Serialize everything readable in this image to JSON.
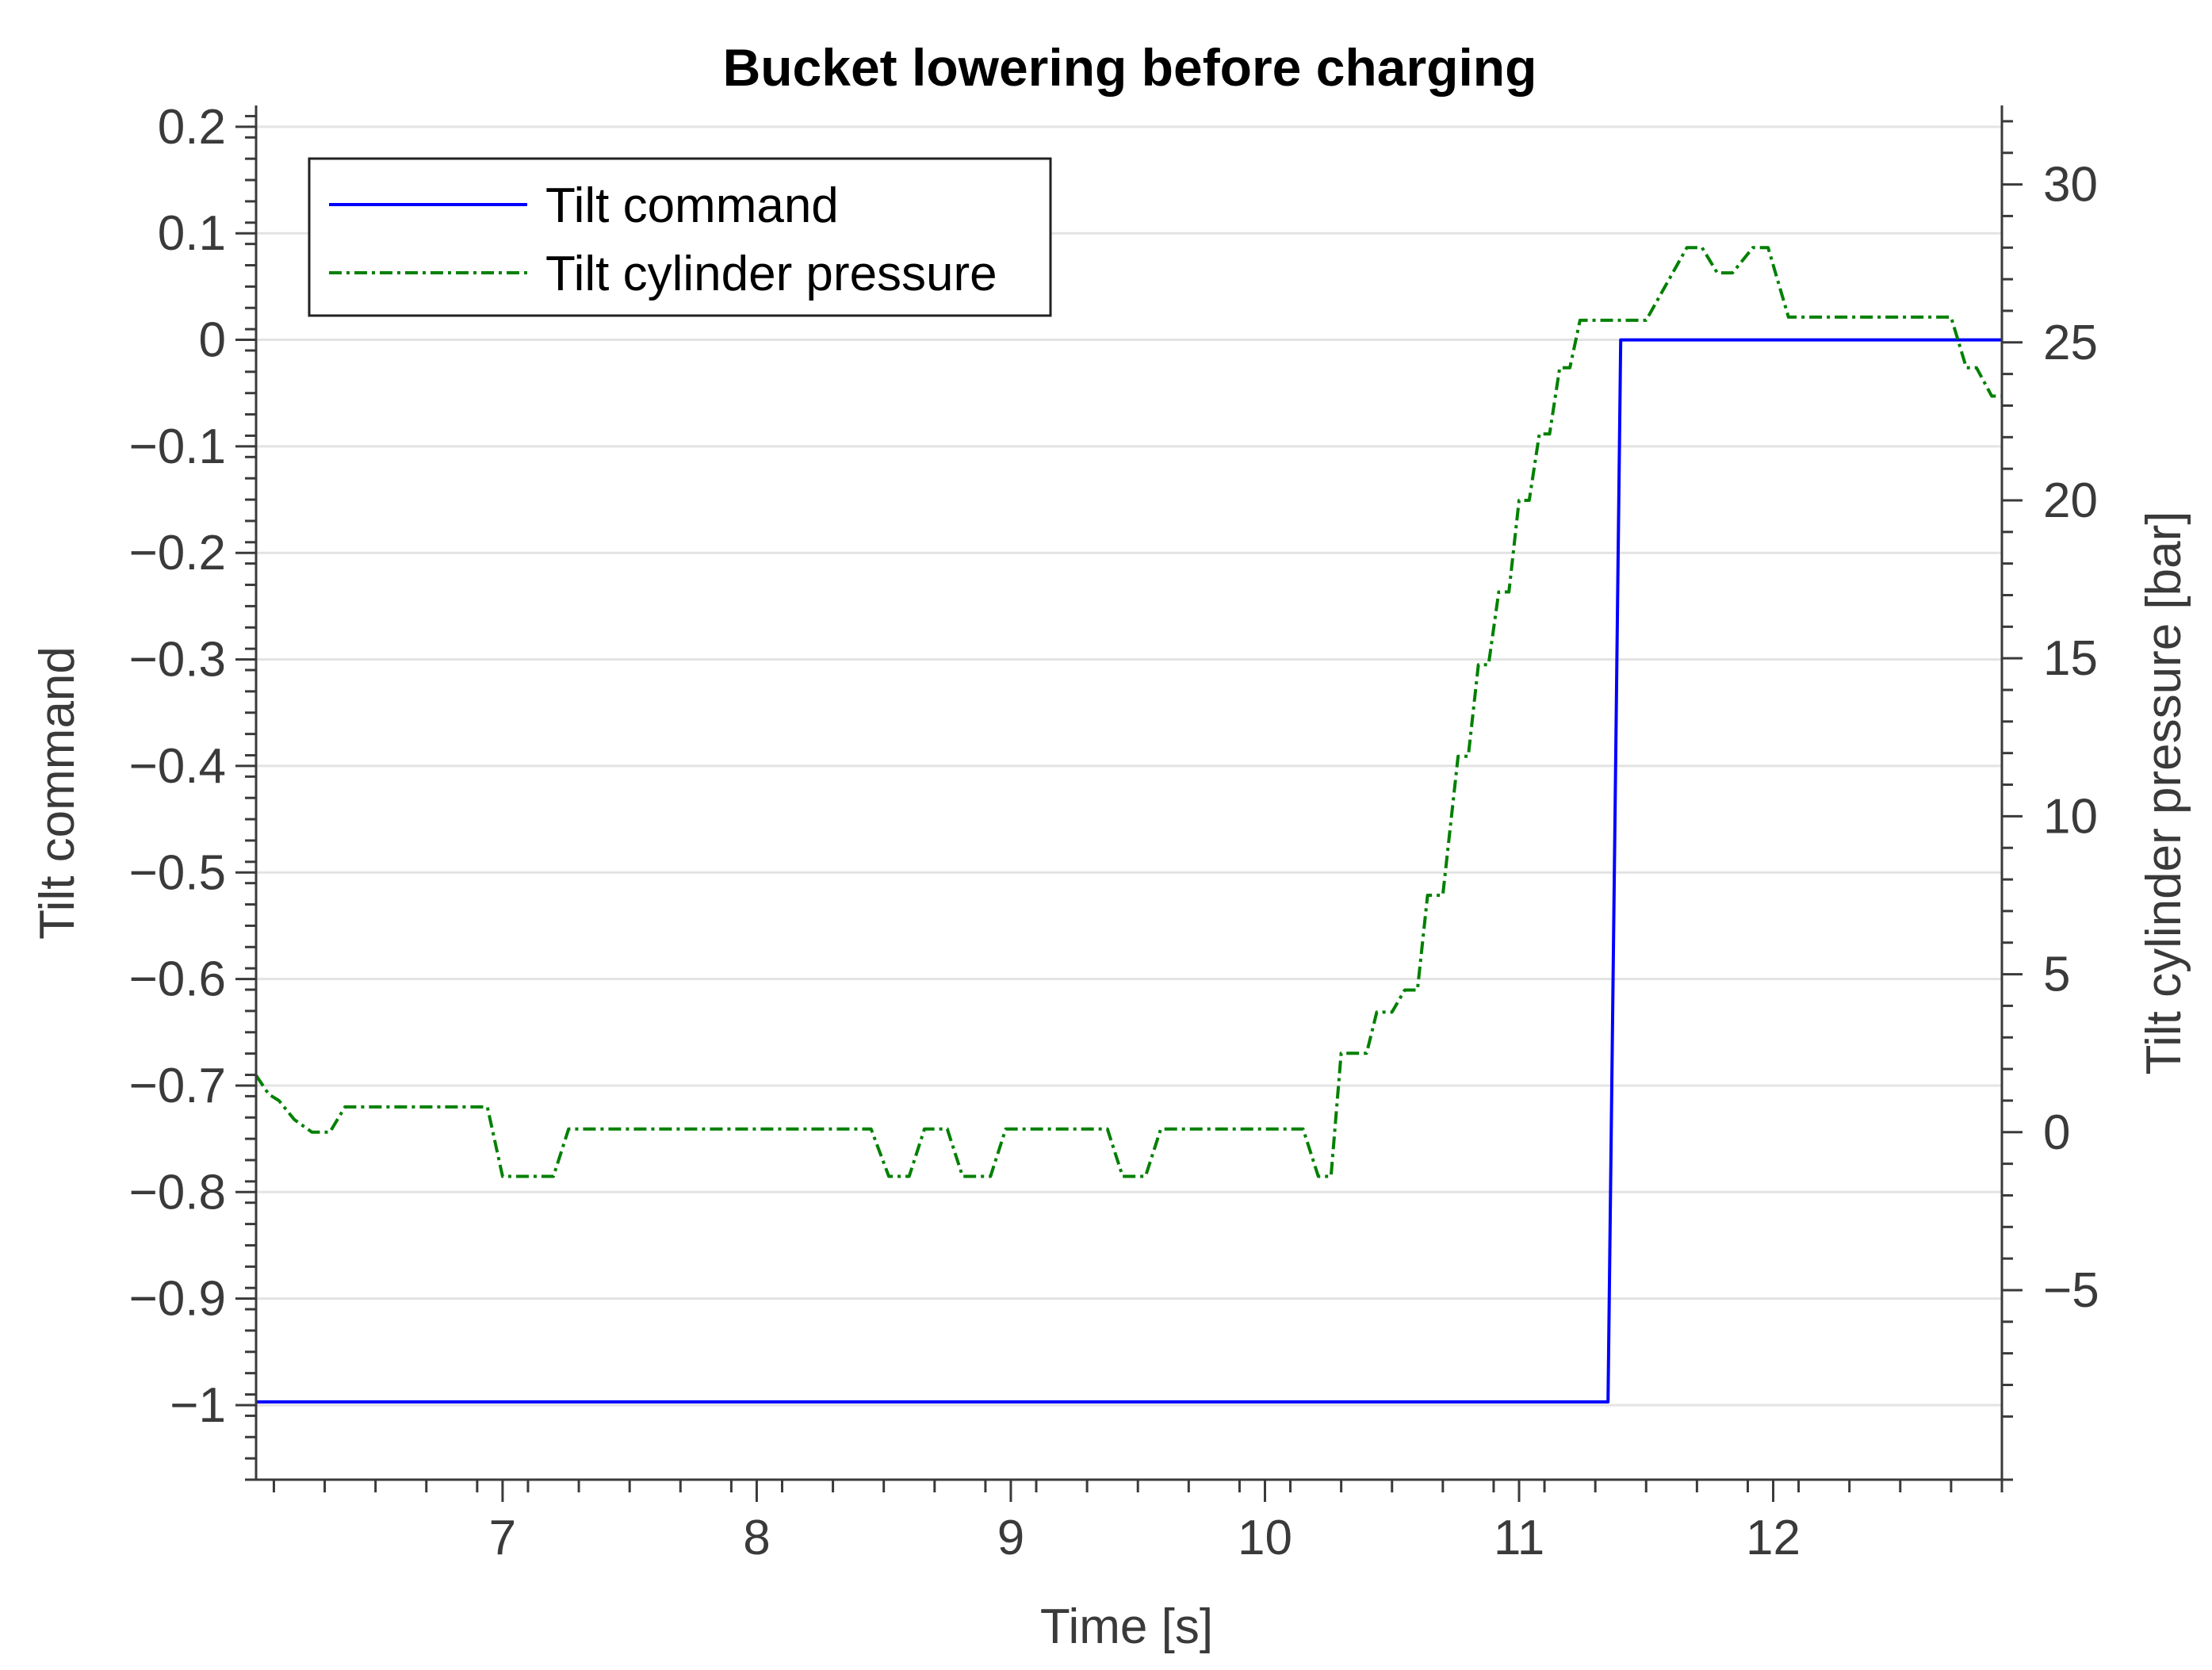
{
  "chart_data": {
    "type": "line",
    "title": "Bucket lowering before charging",
    "xlabel": "Time [s]",
    "ylabel_left": "Tilt command",
    "ylabel_right": "Tilt cylinder pressure [bar]",
    "xlim": [
      6.03,
      12.9
    ],
    "ylim_left": [
      -1.07,
      0.22
    ],
    "ylim_right": [
      -11,
      32.5
    ],
    "x_ticks": [
      7,
      8,
      9,
      10,
      11,
      12
    ],
    "x_tick_labels": [
      "7",
      "8",
      "9",
      "10",
      "11",
      "12"
    ],
    "y_left_ticks": [
      0.2,
      0.1,
      0,
      -0.1,
      -0.2,
      -0.3,
      -0.4,
      -0.5,
      -0.6,
      -0.7,
      -0.8,
      -0.9,
      -1
    ],
    "y_left_tick_labels": [
      "0.2",
      "0.1",
      "0",
      "−0.1",
      "−0.2",
      "−0.3",
      "−0.4",
      "−0.5",
      "−0.6",
      "−0.7",
      "−0.8",
      "−0.9",
      "−1"
    ],
    "y_right_ticks": [
      30,
      25,
      20,
      15,
      10,
      5,
      0,
      -5
    ],
    "y_right_tick_labels": [
      "30",
      "25",
      "20",
      "15",
      "10",
      "5",
      "0",
      "−5"
    ],
    "grid": "horizontal",
    "legend_position": "top-left",
    "series": [
      {
        "name": "Tilt command",
        "axis": "left",
        "color": "#0000ff",
        "style": "solid",
        "x": [
          6.03,
          11.35,
          11.4,
          12.9
        ],
        "y": [
          -0.997,
          -0.997,
          0,
          0
        ]
      },
      {
        "name": "Tilt cylinder pressure",
        "axis": "right",
        "color": "#008000",
        "style": "dash-dot",
        "x": [
          6.03,
          6.08,
          6.12,
          6.18,
          6.25,
          6.32,
          6.38,
          6.94,
          7.0,
          7.2,
          7.26,
          8.45,
          8.52,
          8.6,
          8.66,
          8.75,
          8.81,
          8.92,
          8.98,
          9.38,
          9.44,
          9.53,
          9.59,
          10.15,
          10.21,
          10.26,
          10.3,
          10.4,
          10.44,
          10.5,
          10.55,
          10.6,
          10.64,
          10.7,
          10.76,
          10.8,
          10.84,
          10.88,
          10.92,
          10.96,
          11.0,
          11.04,
          11.08,
          11.12,
          11.16,
          11.2,
          11.24,
          11.28,
          11.3,
          11.35,
          11.38,
          11.42,
          11.46,
          11.5,
          11.66,
          11.72,
          11.78,
          11.84,
          11.92,
          11.98,
          12.06,
          12.14,
          12.7,
          12.76,
          12.8,
          12.86,
          12.9
        ],
        "y": [
          1.8,
          1.2,
          1.0,
          0.4,
          0.0,
          0.0,
          0.8,
          0.8,
          -1.4,
          -1.4,
          0.1,
          0.1,
          -1.4,
          -1.4,
          0.1,
          0.1,
          -1.4,
          -1.4,
          0.1,
          0.1,
          -1.4,
          -1.4,
          0.1,
          0.1,
          -1.4,
          -1.4,
          2.5,
          2.5,
          3.8,
          3.8,
          4.5,
          4.5,
          7.5,
          7.5,
          11.9,
          11.9,
          14.8,
          14.8,
          17.1,
          17.1,
          20.0,
          20.0,
          22.1,
          22.1,
          24.2,
          24.2,
          25.7,
          25.7,
          25.7,
          25.7,
          25.7,
          25.7,
          25.7,
          25.7,
          28.0,
          28.0,
          27.2,
          27.2,
          28.0,
          28.0,
          25.8,
          25.8,
          25.8,
          24.2,
          24.2,
          23.3,
          23.3
        ]
      }
    ]
  }
}
